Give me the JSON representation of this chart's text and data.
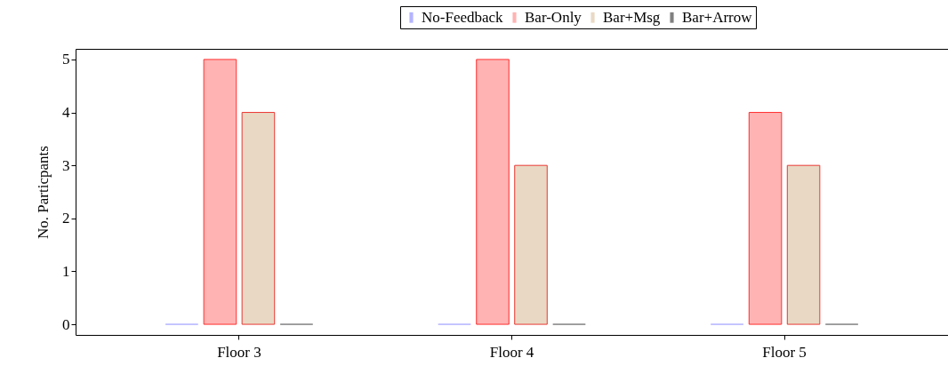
{
  "chart_data": {
    "type": "bar",
    "ylabel": "No. Particpants",
    "categories": [
      "Floor 3",
      "Floor 4",
      "Floor 5"
    ],
    "series": [
      {
        "name": "No-Feedback",
        "color": "#b3b3ff",
        "values": [
          0,
          0,
          0
        ]
      },
      {
        "name": "Bar-Only",
        "color": "#ffb3b3",
        "values": [
          5,
          5,
          4
        ]
      },
      {
        "name": "Bar+Msg",
        "color": "#e9d9c4",
        "values": [
          4,
          3,
          3
        ]
      },
      {
        "name": "Bar+Arrow",
        "color": "#808080",
        "values": [
          0,
          0,
          0
        ]
      }
    ],
    "ylim": [
      -0.2,
      5.2
    ],
    "yticks": [
      0,
      1,
      2,
      3,
      4,
      5
    ],
    "grid": false,
    "legend": "top right"
  }
}
